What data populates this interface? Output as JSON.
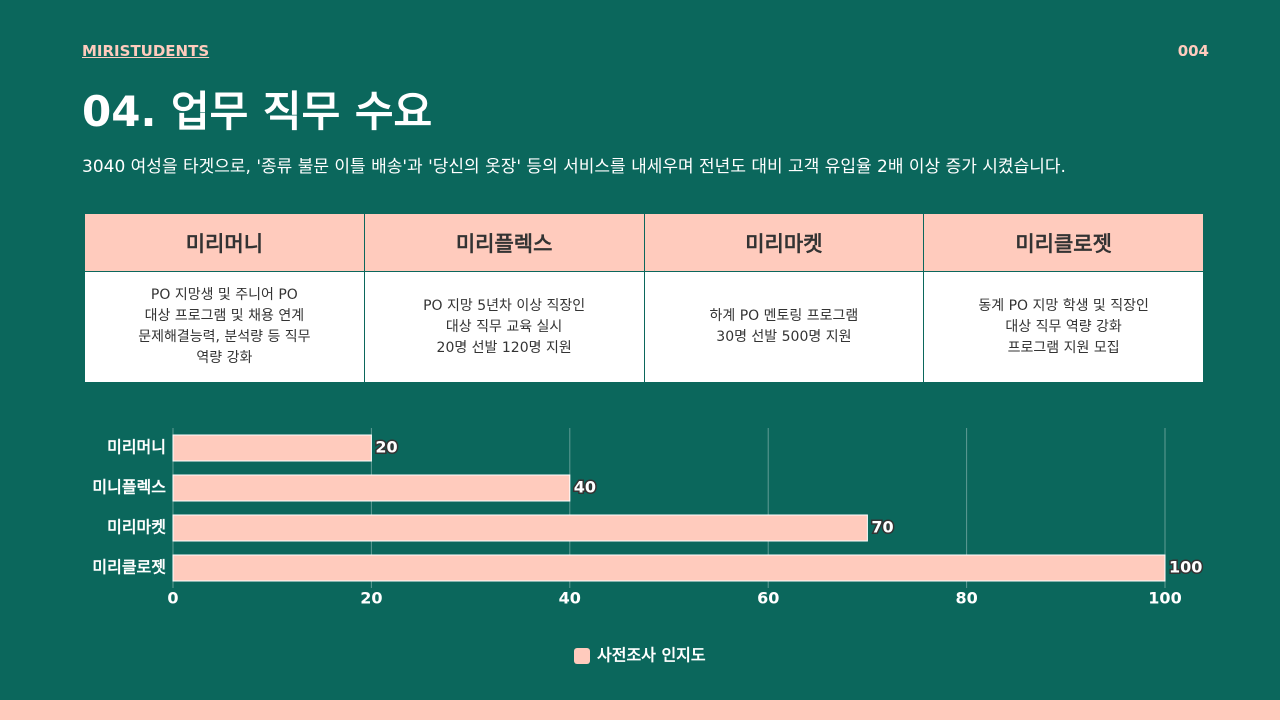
{
  "header": {
    "brand": "MIRISTUDENTS",
    "page": "004",
    "title": "04. 업무 직무 수요",
    "subtitle": "3040 여성을 타겟으로, '종류 불문 이틀 배송'과 '당신의 옷장' 등의 서비스를 내세우며 전년도 대비 고객 유입율 2배 이상 증가 시켰습니다."
  },
  "table": {
    "columns": [
      "미리머니",
      "미리플렉스",
      "미리마켓",
      "미리클로젯"
    ],
    "rows": [
      [
        [
          "PO 지망생 및 주니어 PO",
          "대상 프로그램 및 채용 연계",
          "문제해결능력, 분석량 등 직무",
          "역량 강화"
        ],
        [
          "PO 지망 5년차 이상 직장인",
          "대상 직무 교육 실시",
          "20명 선발 120명 지원"
        ],
        [
          "하계 PO 멘토링 프로그램",
          "30명 선발 500명 지원"
        ],
        [
          "동계 PO 지망 학생 및 직장인",
          "대상 직무 역량 강화",
          "프로그램 지원 모집"
        ]
      ]
    ]
  },
  "chart_data": {
    "type": "bar",
    "orientation": "horizontal",
    "categories": [
      "미리머니",
      "미니플렉스",
      "미리마켓",
      "미리클로젯"
    ],
    "series": [
      {
        "name": "사전조사 인지도",
        "color": "#ffcbbd",
        "values": [
          20,
          40,
          70,
          100
        ]
      }
    ],
    "xlim": [
      0,
      100
    ],
    "xticks": [
      0,
      20,
      40,
      60,
      80,
      100
    ],
    "grid": true,
    "legend": "bottom"
  }
}
